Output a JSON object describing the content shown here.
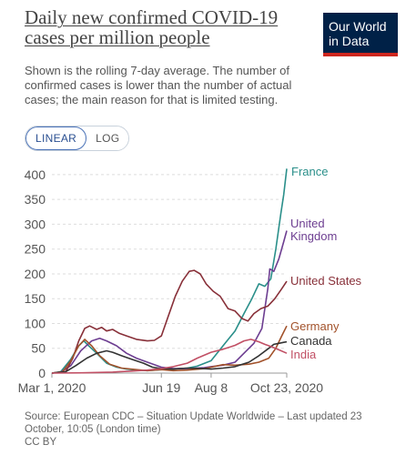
{
  "header": {
    "title": "Daily new confirmed COVID-19 cases per million people",
    "subtitle": "Shown is the rolling 7-day average. The number of confirmed cases is lower than the number of actual cases; the main reason for that is limited testing."
  },
  "logo": {
    "line1": "Our World",
    "line2": "in Data"
  },
  "scale_toggle": {
    "linear_label": "LINEAR",
    "log_label": "LOG",
    "selected": "LINEAR"
  },
  "footer": {
    "source": "Source: European CDC – Situation Update Worldwide – Last updated 23 October, 10:05 (London time)",
    "license": "CC BY"
  },
  "chart_data": {
    "type": "line",
    "title": "Daily new confirmed COVID-19 cases per million people",
    "subtitle": "Shown is the rolling 7-day average. The number of confirmed cases is lower than the number of actual cases; the main reason for that is limited testing.",
    "xlabel": "",
    "ylabel": "",
    "x_range": [
      "2020-03-01",
      "2020-10-23"
    ],
    "x_ticks": [
      {
        "date": "2020-03-01",
        "label": "Mar 1, 2020"
      },
      {
        "date": "2020-06-19",
        "label": "Jun 19"
      },
      {
        "date": "2020-08-08",
        "label": "Aug 8"
      },
      {
        "date": "2020-10-23",
        "label": "Oct 23, 2020"
      }
    ],
    "ylim": [
      0,
      420
    ],
    "y_ticks": [
      0,
      50,
      100,
      150,
      200,
      250,
      300,
      350,
      400
    ],
    "grid": "horizontal dashed",
    "legend": "labels at line ends",
    "series": [
      {
        "name": "France",
        "color": "#2a8f8a",
        "points": [
          [
            "2020-03-01",
            0
          ],
          [
            "2020-03-10",
            3
          ],
          [
            "2020-03-20",
            28
          ],
          [
            "2020-03-28",
            55
          ],
          [
            "2020-04-02",
            65
          ],
          [
            "2020-04-07",
            55
          ],
          [
            "2020-04-15",
            40
          ],
          [
            "2020-04-25",
            20
          ],
          [
            "2020-05-05",
            12
          ],
          [
            "2020-05-15",
            8
          ],
          [
            "2020-05-25",
            6
          ],
          [
            "2020-06-05",
            5
          ],
          [
            "2020-06-19",
            7
          ],
          [
            "2020-07-01",
            8
          ],
          [
            "2020-07-15",
            10
          ],
          [
            "2020-07-25",
            14
          ],
          [
            "2020-08-08",
            25
          ],
          [
            "2020-08-20",
            55
          ],
          [
            "2020-09-01",
            85
          ],
          [
            "2020-09-10",
            120
          ],
          [
            "2020-09-18",
            150
          ],
          [
            "2020-09-25",
            180
          ],
          [
            "2020-10-01",
            175
          ],
          [
            "2020-10-07",
            190
          ],
          [
            "2020-10-12",
            250
          ],
          [
            "2020-10-17",
            320
          ],
          [
            "2020-10-20",
            360
          ],
          [
            "2020-10-23",
            412
          ]
        ]
      },
      {
        "name": "United Kingdom",
        "color": "#6d3e91",
        "points": [
          [
            "2020-03-01",
            0
          ],
          [
            "2020-03-10",
            2
          ],
          [
            "2020-03-20",
            15
          ],
          [
            "2020-03-30",
            45
          ],
          [
            "2020-04-10",
            65
          ],
          [
            "2020-04-18",
            70
          ],
          [
            "2020-04-25",
            65
          ],
          [
            "2020-05-05",
            55
          ],
          [
            "2020-05-15",
            40
          ],
          [
            "2020-05-25",
            30
          ],
          [
            "2020-06-05",
            22
          ],
          [
            "2020-06-19",
            12
          ],
          [
            "2020-07-01",
            9
          ],
          [
            "2020-07-15",
            9
          ],
          [
            "2020-08-01",
            11
          ],
          [
            "2020-08-08",
            13
          ],
          [
            "2020-08-20",
            16
          ],
          [
            "2020-09-01",
            22
          ],
          [
            "2020-09-10",
            40
          ],
          [
            "2020-09-20",
            60
          ],
          [
            "2020-09-28",
            90
          ],
          [
            "2020-10-04",
            170
          ],
          [
            "2020-10-06",
            210
          ],
          [
            "2020-10-10",
            205
          ],
          [
            "2020-10-15",
            230
          ],
          [
            "2020-10-20",
            265
          ],
          [
            "2020-10-23",
            287
          ]
        ]
      },
      {
        "name": "United States",
        "color": "#883039",
        "points": [
          [
            "2020-03-01",
            0
          ],
          [
            "2020-03-15",
            3
          ],
          [
            "2020-03-22",
            30
          ],
          [
            "2020-03-28",
            65
          ],
          [
            "2020-04-03",
            90
          ],
          [
            "2020-04-08",
            95
          ],
          [
            "2020-04-15",
            88
          ],
          [
            "2020-04-20",
            92
          ],
          [
            "2020-04-25",
            85
          ],
          [
            "2020-05-01",
            88
          ],
          [
            "2020-05-08",
            80
          ],
          [
            "2020-05-15",
            75
          ],
          [
            "2020-05-25",
            68
          ],
          [
            "2020-06-05",
            65
          ],
          [
            "2020-06-12",
            66
          ],
          [
            "2020-06-19",
            75
          ],
          [
            "2020-06-26",
            115
          ],
          [
            "2020-07-03",
            155
          ],
          [
            "2020-07-10",
            185
          ],
          [
            "2020-07-17",
            205
          ],
          [
            "2020-07-22",
            207
          ],
          [
            "2020-07-28",
            200
          ],
          [
            "2020-08-03",
            180
          ],
          [
            "2020-08-10",
            165
          ],
          [
            "2020-08-17",
            155
          ],
          [
            "2020-08-25",
            130
          ],
          [
            "2020-09-01",
            125
          ],
          [
            "2020-09-08",
            110
          ],
          [
            "2020-09-14",
            105
          ],
          [
            "2020-09-20",
            120
          ],
          [
            "2020-09-27",
            130
          ],
          [
            "2020-10-04",
            135
          ],
          [
            "2020-10-11",
            150
          ],
          [
            "2020-10-18",
            170
          ],
          [
            "2020-10-23",
            185
          ]
        ]
      },
      {
        "name": "Germany",
        "color": "#a2522b",
        "points": [
          [
            "2020-03-01",
            0
          ],
          [
            "2020-03-12",
            3
          ],
          [
            "2020-03-20",
            25
          ],
          [
            "2020-03-28",
            55
          ],
          [
            "2020-04-03",
            68
          ],
          [
            "2020-04-10",
            55
          ],
          [
            "2020-04-18",
            35
          ],
          [
            "2020-04-28",
            18
          ],
          [
            "2020-05-10",
            10
          ],
          [
            "2020-05-25",
            7
          ],
          [
            "2020-06-05",
            5
          ],
          [
            "2020-06-19",
            7
          ],
          [
            "2020-07-01",
            5
          ],
          [
            "2020-07-15",
            6
          ],
          [
            "2020-08-01",
            9
          ],
          [
            "2020-08-08",
            12
          ],
          [
            "2020-08-20",
            17
          ],
          [
            "2020-09-01",
            16
          ],
          [
            "2020-09-15",
            18
          ],
          [
            "2020-09-25",
            22
          ],
          [
            "2020-10-05",
            30
          ],
          [
            "2020-10-12",
            50
          ],
          [
            "2020-10-18",
            75
          ],
          [
            "2020-10-23",
            95
          ]
        ]
      },
      {
        "name": "Canada",
        "color": "#333333",
        "points": [
          [
            "2020-03-01",
            0
          ],
          [
            "2020-03-15",
            3
          ],
          [
            "2020-03-25",
            15
          ],
          [
            "2020-04-05",
            30
          ],
          [
            "2020-04-15",
            40
          ],
          [
            "2020-04-25",
            45
          ],
          [
            "2020-05-01",
            42
          ],
          [
            "2020-05-10",
            35
          ],
          [
            "2020-05-20",
            28
          ],
          [
            "2020-06-01",
            20
          ],
          [
            "2020-06-10",
            12
          ],
          [
            "2020-06-19",
            9
          ],
          [
            "2020-07-01",
            8
          ],
          [
            "2020-07-15",
            10
          ],
          [
            "2020-08-01",
            9
          ],
          [
            "2020-08-08",
            8
          ],
          [
            "2020-08-20",
            10
          ],
          [
            "2020-09-01",
            13
          ],
          [
            "2020-09-15",
            22
          ],
          [
            "2020-09-25",
            35
          ],
          [
            "2020-10-05",
            50
          ],
          [
            "2020-10-10",
            58
          ],
          [
            "2020-10-15",
            60
          ],
          [
            "2020-10-20",
            62
          ],
          [
            "2020-10-23",
            63
          ]
        ]
      },
      {
        "name": "India",
        "color": "#c15065",
        "points": [
          [
            "2020-03-01",
            0
          ],
          [
            "2020-04-01",
            0.5
          ],
          [
            "2020-05-01",
            2
          ],
          [
            "2020-05-20",
            4
          ],
          [
            "2020-06-05",
            6
          ],
          [
            "2020-06-19",
            9
          ],
          [
            "2020-07-01",
            13
          ],
          [
            "2020-07-15",
            20
          ],
          [
            "2020-07-25",
            30
          ],
          [
            "2020-08-08",
            42
          ],
          [
            "2020-08-20",
            48
          ],
          [
            "2020-09-01",
            56
          ],
          [
            "2020-09-10",
            65
          ],
          [
            "2020-09-17",
            68
          ],
          [
            "2020-09-25",
            63
          ],
          [
            "2020-10-01",
            58
          ],
          [
            "2020-10-08",
            53
          ],
          [
            "2020-10-15",
            47
          ],
          [
            "2020-10-23",
            40
          ]
        ]
      }
    ]
  }
}
